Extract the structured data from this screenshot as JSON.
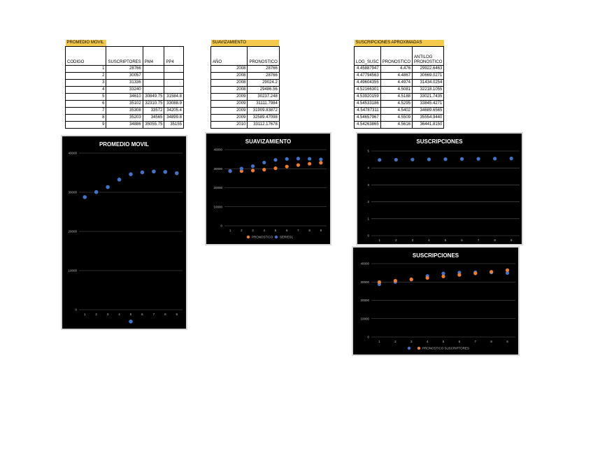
{
  "colors": {
    "blue": "#4472c4",
    "orange": "#ed7d31",
    "header_fill": "#f5c94c",
    "chart_bg": "#000000",
    "grid": "#595959"
  },
  "tables": {
    "promedio": {
      "title": "PROMEDIO MOVIL",
      "headers": [
        "CODIGO",
        "SUSCRIPTORES",
        "PM4",
        "PP4"
      ],
      "rows": [
        [
          "1",
          "28766",
          "",
          ""
        ],
        [
          "2",
          "30057",
          "",
          ""
        ],
        [
          "3",
          "31336",
          "",
          ""
        ],
        [
          "4",
          "33240",
          "",
          ""
        ],
        [
          "5",
          "34610",
          "30849.75",
          "31584.8"
        ],
        [
          "6",
          "35102",
          "32310.75",
          "33088.9"
        ],
        [
          "7",
          "35308",
          "33572",
          "34205.4"
        ],
        [
          "8",
          "35203",
          "34565",
          "34899.8"
        ],
        [
          "9",
          "34886",
          "35055.75",
          "35155"
        ]
      ]
    },
    "suavizamiento": {
      "title": "SUAVIZAMIENTO",
      "headers": [
        "AÑO",
        "PRONOSTICO"
      ],
      "rows": [
        [
          "2008",
          "28766"
        ],
        [
          "2008",
          "28766"
        ],
        [
          "2008",
          "29024.2"
        ],
        [
          "2008",
          "29486.56"
        ],
        [
          "2009",
          "30237.248"
        ],
        [
          "2009",
          "31111.7984"
        ],
        [
          "2009",
          "31909.83872"
        ],
        [
          "2009",
          "32589.47098"
        ],
        [
          "2010",
          "33112.17678"
        ]
      ]
    },
    "suscripciones": {
      "title": "SUSCRIPCIONES APROXIMADAS",
      "headers": [
        "LOG_SUSC",
        "PRONOSTICO",
        "ANTILOG PRONOSTICO"
      ],
      "rows": [
        [
          "4.45887947",
          "4.476",
          "29922.6463"
        ],
        [
          "4.47794563",
          "4.4867",
          "30669.0271"
        ],
        [
          "4.49604355",
          "4.4974",
          "31434.0254"
        ],
        [
          "4.52166301",
          "4.5081",
          "32218.1055"
        ],
        [
          "4.53920159",
          "4.5188",
          "33021.7435"
        ],
        [
          "4.54533186",
          "4.5295",
          "33845.4271"
        ],
        [
          "4.54787311",
          "4.5402",
          "34689.6565"
        ],
        [
          "4.54657967",
          "4.5509",
          "35554.9440"
        ],
        [
          "4.54263865",
          "4.5616",
          "36441.8150"
        ]
      ]
    }
  },
  "chart_data": [
    {
      "type": "scatter",
      "title": "PROMEDIO MOVIL",
      "x": [
        1,
        2,
        3,
        4,
        5,
        6,
        7,
        8,
        9,
        5
      ],
      "series": [
        {
          "values": [
            28766,
            30057,
            31336,
            33240,
            34610,
            35102,
            35308,
            35203,
            34886,
            -3000
          ]
        }
      ],
      "x_ticks": [
        "1",
        "2",
        "3",
        "4",
        "5",
        "6",
        "7",
        "8",
        "9"
      ],
      "y_ticks": [
        "0",
        "10000",
        "20000",
        "30000",
        "40000"
      ],
      "ylim": [
        0,
        40000
      ],
      "grid": true
    },
    {
      "type": "scatter",
      "title": "SUAVIZAMIENTO",
      "x": [
        1,
        2,
        3,
        4,
        5,
        6,
        7,
        8,
        9
      ],
      "series": [
        {
          "name": "PRONOSTICO",
          "color": "#ed7d31",
          "values": [
            28766,
            28766,
            29024.2,
            29486.56,
            30237.248,
            31111.7984,
            31909.83872,
            32589.47098,
            33112.17678
          ]
        },
        {
          "name": "SERIES1",
          "color": "#4472c4",
          "values": [
            28766,
            30057,
            31336,
            33240,
            34610,
            35102,
            35308,
            35203,
            34886
          ]
        }
      ],
      "x_ticks": [
        "1",
        "2",
        "3",
        "4",
        "5",
        "6",
        "7",
        "8",
        "9"
      ],
      "y_ticks": [
        "0",
        "10000",
        "20000",
        "30000",
        "40000"
      ],
      "ylim": [
        0,
        40000
      ],
      "legend": "bottom",
      "grid": true
    },
    {
      "type": "scatter",
      "title": "SUSCRIPCIONES",
      "x": [
        1,
        2,
        3,
        4,
        5,
        6,
        7,
        8,
        9
      ],
      "series": [
        {
          "color": "#4472c4",
          "values": [
            4.476,
            4.4867,
            4.4974,
            4.5081,
            4.5188,
            4.5295,
            4.5402,
            4.5509,
            4.5616
          ]
        }
      ],
      "x_ticks": [
        "1",
        "2",
        "3",
        "4",
        "5",
        "6",
        "7",
        "8",
        "9"
      ],
      "y_ticks": [
        "0",
        "1",
        "2",
        "3",
        "4",
        "5"
      ],
      "ylim": [
        0,
        5
      ],
      "grid": true
    },
    {
      "type": "scatter",
      "title": "SUSCRIPCIONES",
      "x": [
        1,
        2,
        3,
        4,
        5,
        6,
        7,
        8,
        9
      ],
      "series": [
        {
          "name": "",
          "color": "#4472c4",
          "values": [
            28766,
            30057,
            31336,
            33240,
            34610,
            35102,
            35308,
            35203,
            34886
          ]
        },
        {
          "name": "PRONOSTICO SUSCRIPTORES",
          "color": "#ed7d31",
          "values": [
            29922.6463,
            30669.0271,
            31434.0254,
            32218.1055,
            33021.7435,
            33845.4271,
            34689.6565,
            35554.944,
            36441.815
          ]
        }
      ],
      "x_ticks": [
        "1",
        "2",
        "3",
        "4",
        "5",
        "6",
        "7",
        "8",
        "9"
      ],
      "y_ticks": [
        "0",
        "10000",
        "20000",
        "30000",
        "40000"
      ],
      "ylim": [
        0,
        40000
      ],
      "legend": "bottom",
      "grid": true
    }
  ]
}
